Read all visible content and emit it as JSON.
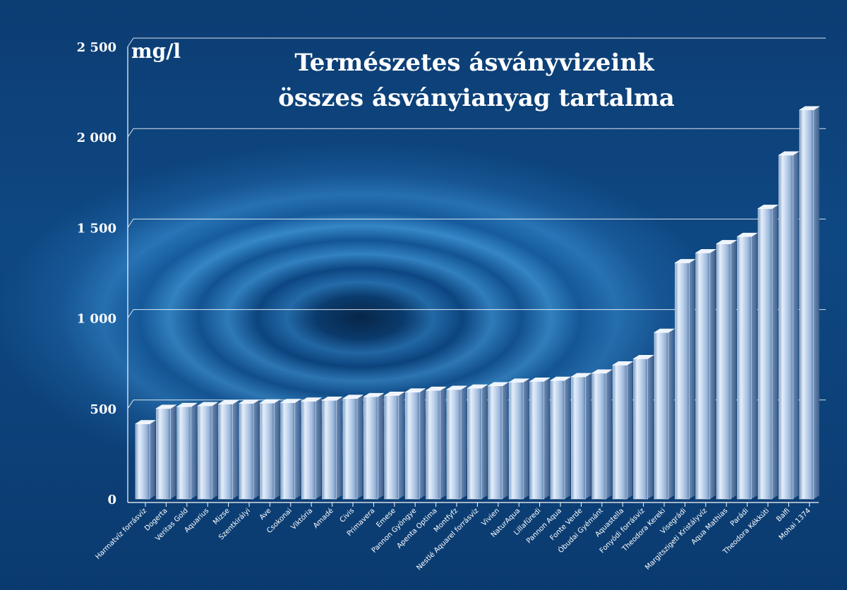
{
  "chart_data": {
    "type": "bar",
    "title_line1": "Természetes ásványvizeink",
    "title_line2": "összes ásványianyag tartalma",
    "unit_label": "mg/l",
    "ylim": [
      0,
      2500
    ],
    "yticks": [
      "0",
      "500",
      "1 000",
      "1 500",
      "2 000",
      "2 500"
    ],
    "ytick_values": [
      0,
      500,
      1000,
      1500,
      2000,
      2500
    ],
    "grid": true,
    "categories": [
      "Harmatvíz forrásvíz",
      "Dogerta",
      "Veritas Gold",
      "Aquarius",
      "Mizse",
      "Szentkirályi",
      "Ave",
      "Csokonai",
      "Viktória",
      "Amadé",
      "Civis",
      "Primavera",
      "Emese",
      "Pannon Gyöngye",
      "Apenta Optima",
      "Montfyfz",
      "Nestlé Aquarel forrásvíz",
      "Vivien",
      "NaturAqua",
      "Lillafüredi",
      "Pannon Aqua",
      "Fonte Verde",
      "Óbudai Gyémánt",
      "Aquastella",
      "Fonyódi forrásvíz",
      "Theodora Kereki",
      "Visegrádi",
      "Margitszigeti Kristályvíz",
      "Aqua Mathias",
      "Parádi",
      "Theodora Kékkúti",
      "Balfi",
      "Mohai 1374"
    ],
    "values": [
      415,
      500,
      510,
      515,
      525,
      528,
      530,
      532,
      540,
      545,
      555,
      565,
      572,
      590,
      600,
      605,
      612,
      625,
      645,
      650,
      655,
      675,
      695,
      740,
      775,
      920,
      1305,
      1360,
      1410,
      1450,
      1605,
      1900,
      2150
    ]
  }
}
